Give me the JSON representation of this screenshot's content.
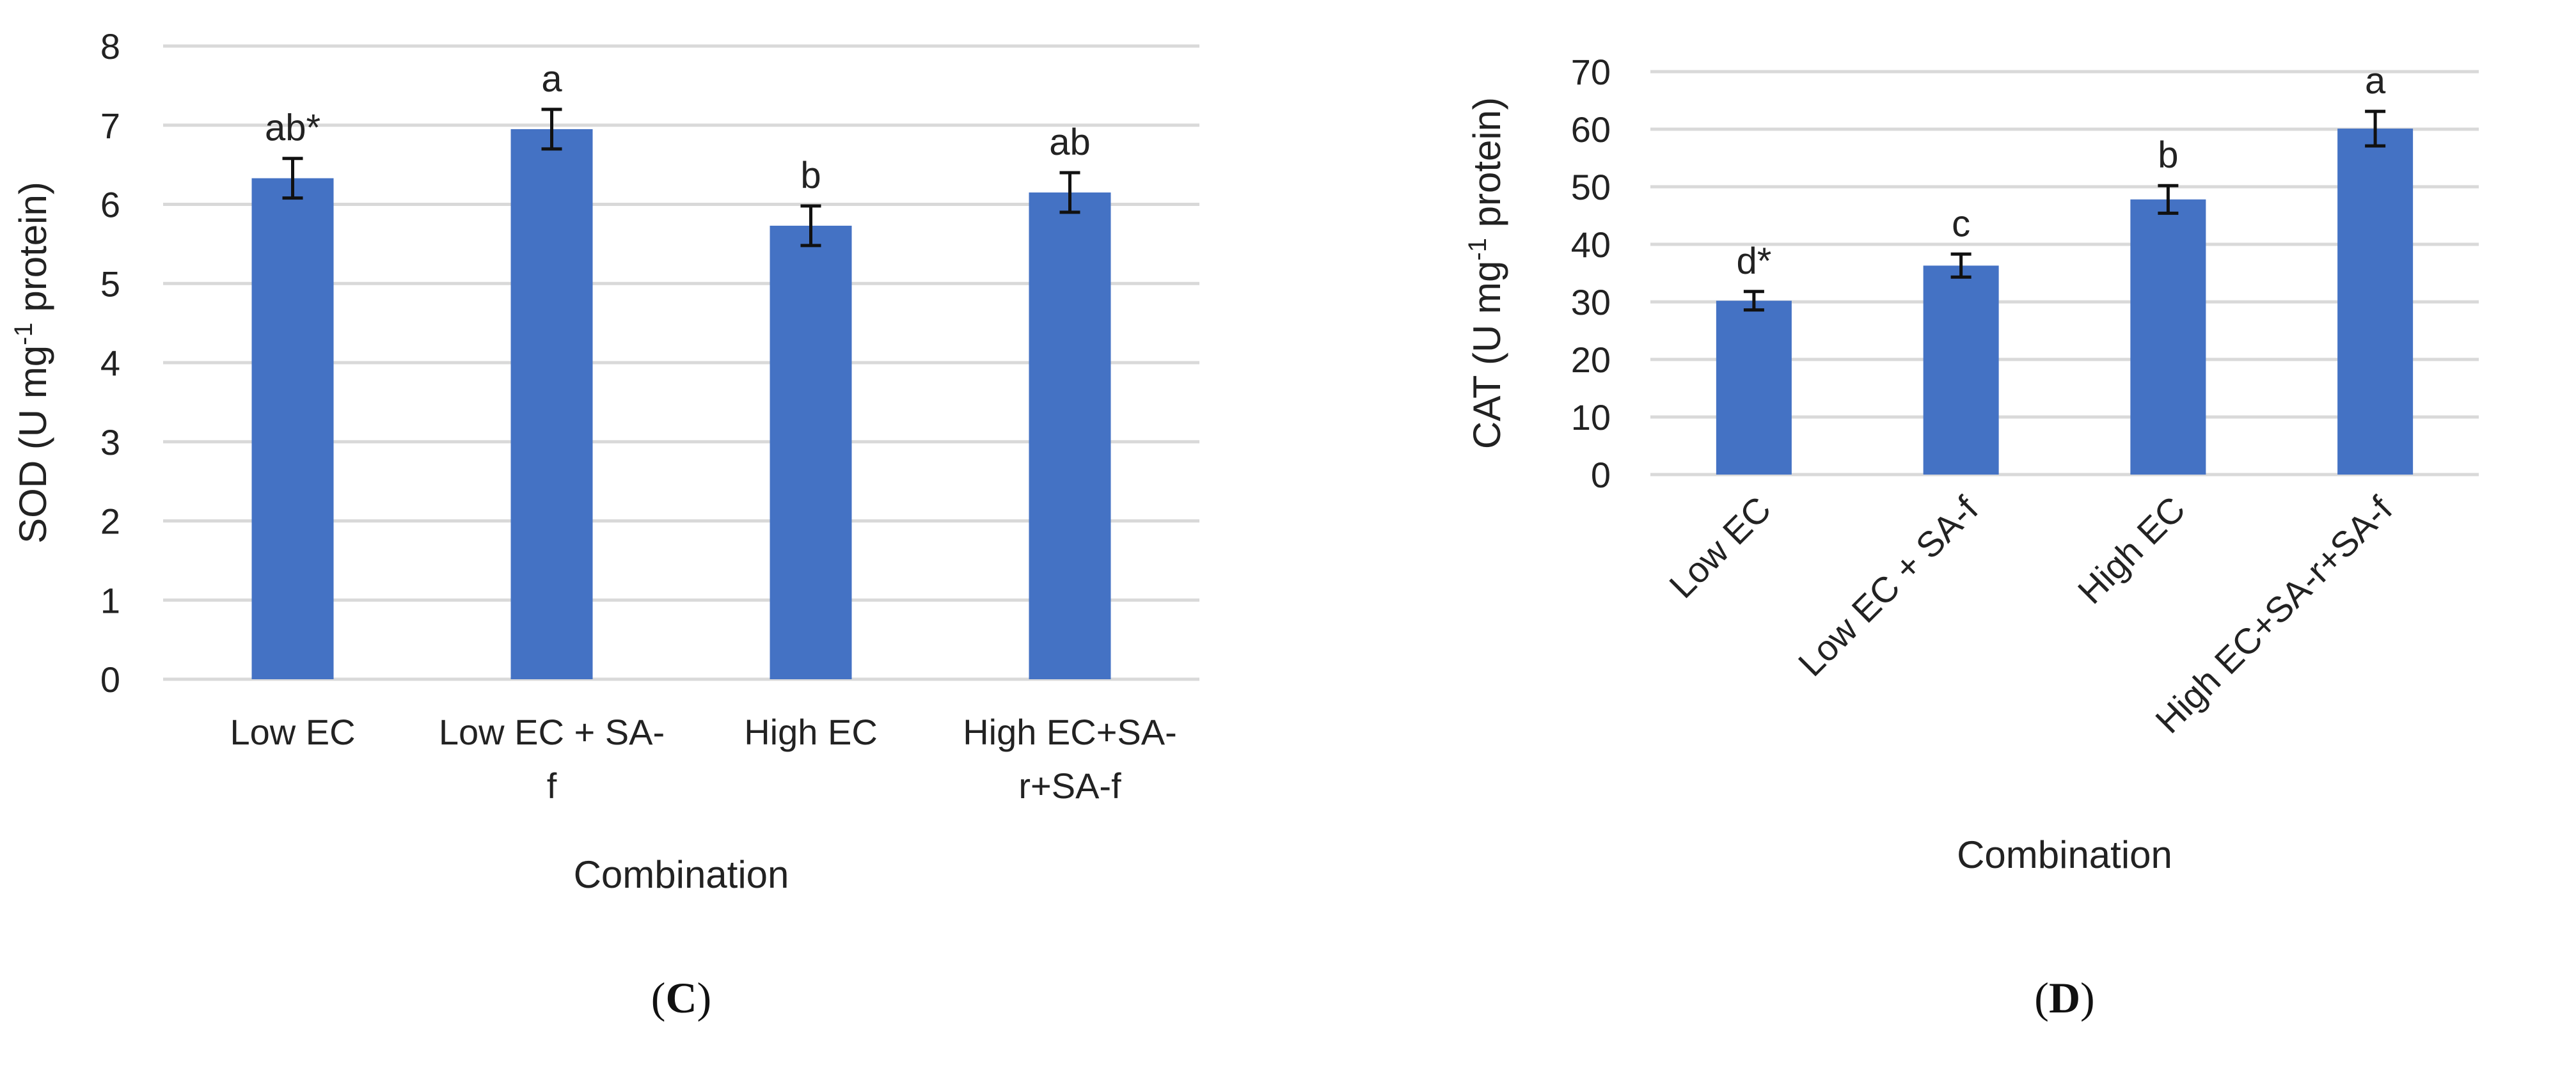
{
  "chart_data": [
    {
      "type": "bar",
      "panel": "C",
      "panel_label": {
        "open": "(",
        "letter": "C",
        "close": ")"
      },
      "categories": [
        "Low EC",
        "Low EC + SA-f",
        "High EC",
        "High EC+SA-r+SA-f"
      ],
      "category_lines": [
        [
          "Low EC"
        ],
        [
          "Low EC + SA-",
          "f"
        ],
        [
          "High EC"
        ],
        [
          "High EC+SA-",
          "r+SA-f"
        ]
      ],
      "values": [
        6.33,
        6.95,
        5.73,
        6.15
      ],
      "errors": [
        0.25,
        0.25,
        0.25,
        0.25
      ],
      "significance": [
        "ab*",
        "a",
        "b",
        "ab"
      ],
      "xlabel": "Combination",
      "ylabel": {
        "text": "SOD (U mg",
        "sup": "-1",
        "rest": " protein)"
      },
      "ylim": [
        0,
        8
      ],
      "yticks": [
        0,
        1,
        2,
        3,
        4,
        5,
        6,
        7,
        8
      ],
      "color": "#4472c4",
      "label_rotation": 0
    },
    {
      "type": "bar",
      "panel": "D",
      "panel_label": {
        "open": "(",
        "letter": "D",
        "close": ")"
      },
      "categories": [
        "Low EC",
        "Low EC + SA-f",
        "High EC",
        "High EC+SA-r+SA-f"
      ],
      "category_lines": [
        [
          "Low EC"
        ],
        [
          "Low EC + SA-f"
        ],
        [
          "High EC"
        ],
        [
          "High EC+SA-r+SA-f"
        ]
      ],
      "values": [
        30.2,
        36.3,
        47.8,
        60.1
      ],
      "errors": [
        1.6,
        2.0,
        2.4,
        3.0
      ],
      "significance": [
        "d*",
        "c",
        "b",
        "a"
      ],
      "xlabel": "Combination",
      "ylabel": {
        "text": "CAT (U mg",
        "sup": "-1",
        "rest": " protein)"
      },
      "ylim": [
        0,
        70
      ],
      "yticks": [
        0,
        10,
        20,
        30,
        40,
        50,
        60,
        70
      ],
      "color": "#4472c4",
      "label_rotation": -45
    }
  ]
}
